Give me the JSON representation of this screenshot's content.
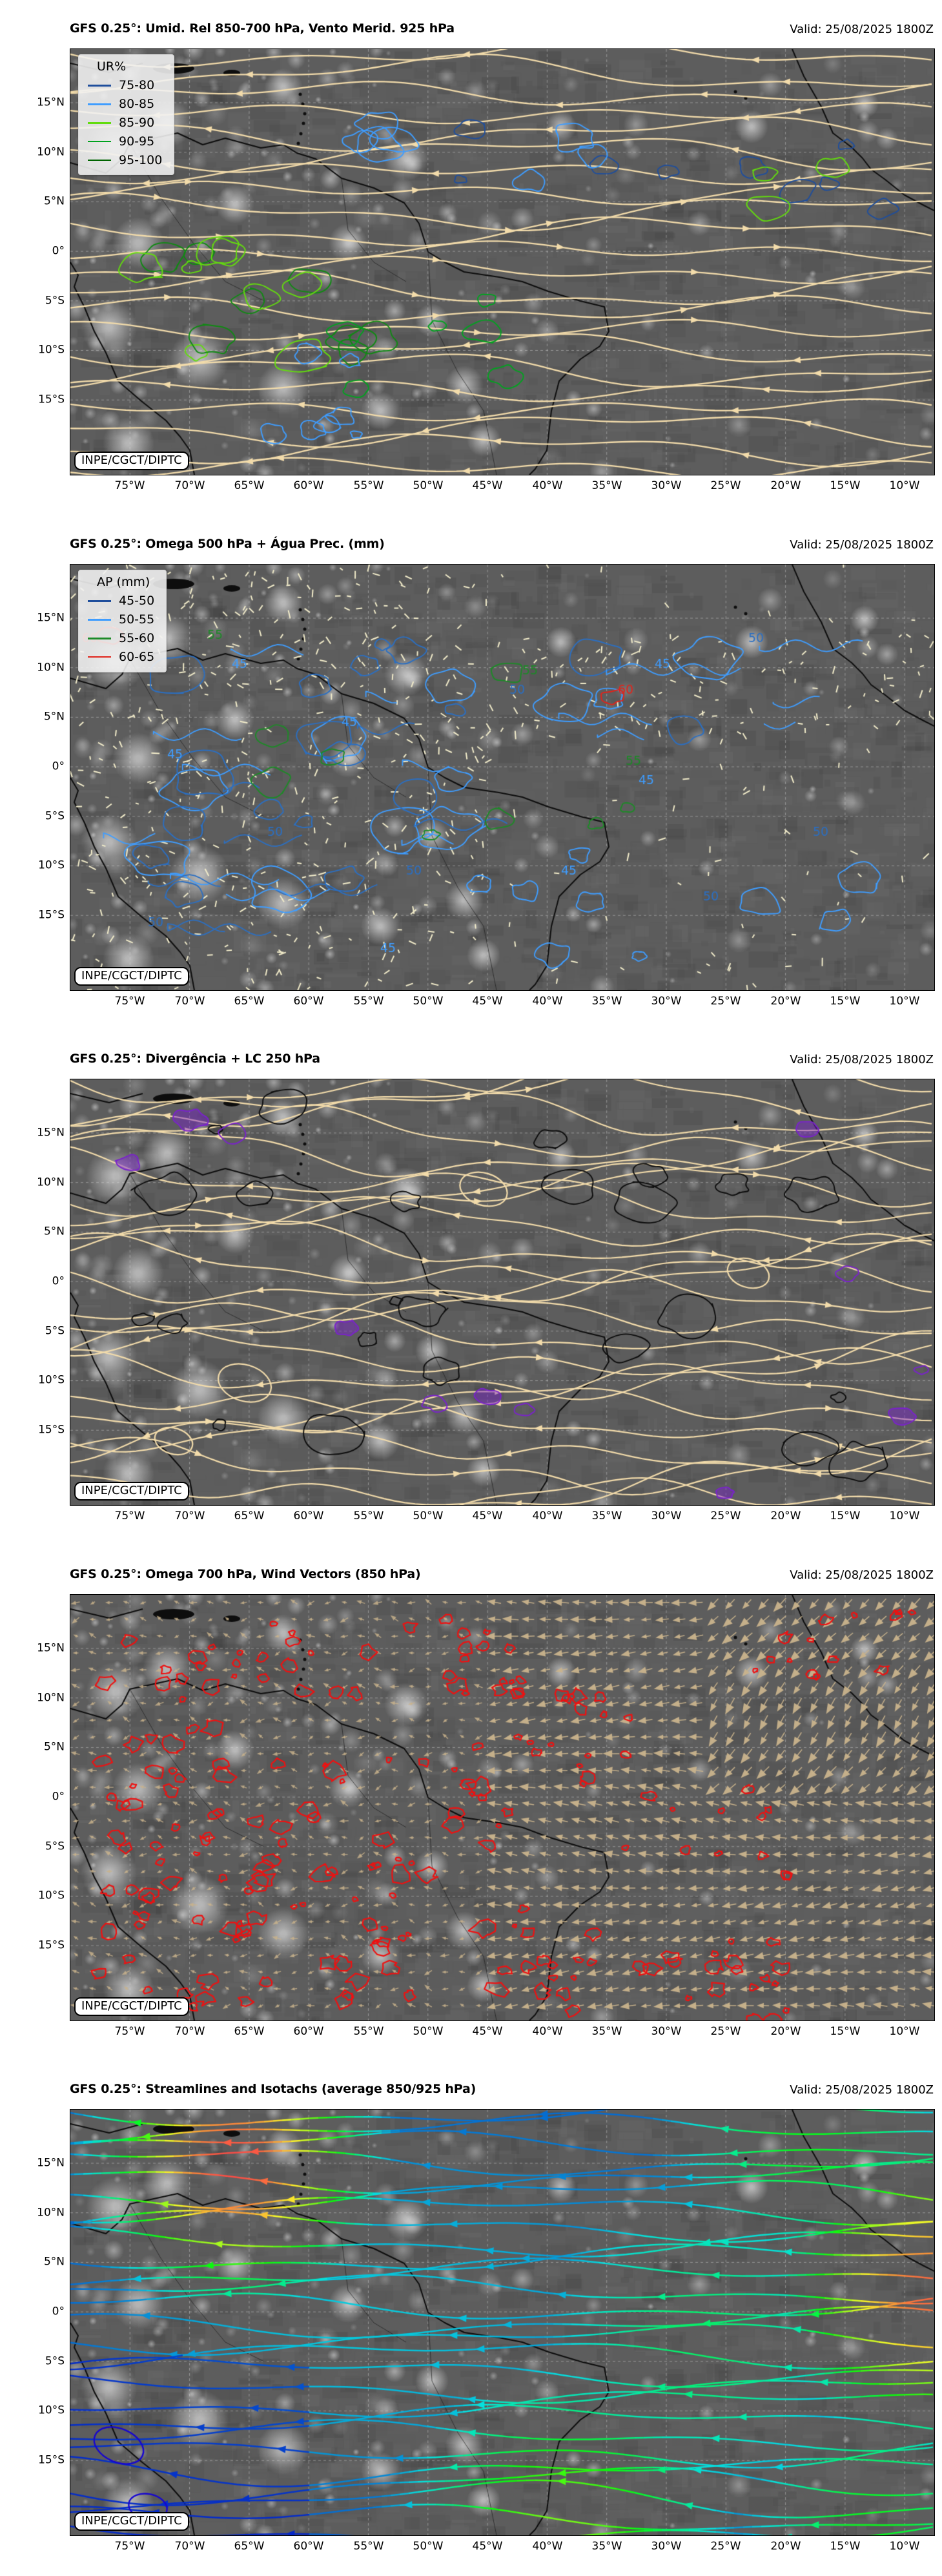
{
  "figure": {
    "valid": "Valid: 25/08/2025 1800Z",
    "watermark": "INPE/CGCT/DIPTC",
    "lat_ticks": [
      "15°N",
      "10°N",
      "5°N",
      "0°",
      "5°S",
      "10°S",
      "15°S"
    ],
    "lon_ticks": [
      "75°W",
      "70°W",
      "65°W",
      "60°W",
      "55°W",
      "50°W",
      "45°W",
      "40°W",
      "35°W",
      "30°W",
      "25°W",
      "20°W",
      "15°W",
      "10°W"
    ]
  },
  "panels": [
    {
      "title": "GFS 0.25°: Umid. Rel 850-700 hPa, Vento Merid. 925 hPa",
      "legend": {
        "title": "UR%",
        "items": [
          {
            "label": "75-80",
            "color": "#1f4e9c"
          },
          {
            "label": "80-85",
            "color": "#3f9dff"
          },
          {
            "label": "85-90",
            "color": "#63dc0e"
          },
          {
            "label": "90-95",
            "color": "#00a31f"
          },
          {
            "label": "95-100",
            "color": "#006400"
          }
        ]
      }
    },
    {
      "title": "GFS 0.25°: Omega 500 hPa + Água Prec. (mm)",
      "legend": {
        "title": "AP (mm)",
        "items": [
          {
            "label": "45-50",
            "color": "#1f4e9c"
          },
          {
            "label": "50-55",
            "color": "#3f9dff"
          },
          {
            "label": "55-60",
            "color": "#1d8a27"
          },
          {
            "label": "60-65",
            "color": "#e0241b"
          }
        ]
      },
      "contour_labels": [
        {
          "text": "45",
          "color": "#3f9dff"
        },
        {
          "text": "50",
          "color": "#2b6fc2"
        },
        {
          "text": "55",
          "color": "#1d8a27"
        },
        {
          "text": "60",
          "color": "#e0241b"
        }
      ]
    },
    {
      "title": "GFS 0.25°: Divergência + LC 250 hPa"
    },
    {
      "title": "GFS 0.25°: Omega 700 hPa, Wind Vectors (850 hPa)"
    },
    {
      "title": "GFS 0.25°: Streamlines and Isotachs (average 850/925 hPa)"
    }
  ],
  "colors": {
    "streamline_tan": "#f3dcab",
    "vector_tan": "#c9b38c",
    "omega_red": "#ee1111",
    "lc_purple": "#7a22cc",
    "divergence_black": "#0d0d0d",
    "pwat_speck": "#f2ecca",
    "coast": "#0d0d0d"
  }
}
